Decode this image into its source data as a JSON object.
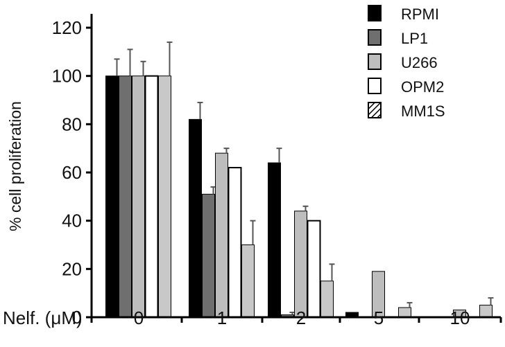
{
  "chart_data": {
    "type": "bar",
    "title": "",
    "xlabel": "Nelf. (μM)",
    "ylabel": "% cell proliferation",
    "ylim": [
      0,
      120
    ],
    "yticks": [
      0,
      20,
      40,
      60,
      80,
      100,
      120
    ],
    "categories": [
      "0",
      "1",
      "2",
      "5",
      "10"
    ],
    "legend_position": "top-right",
    "grid": false,
    "series": [
      {
        "name": "RPMI",
        "color": "#000000",
        "pattern": "solid",
        "values": [
          100,
          82,
          64,
          2,
          0
        ],
        "errors": [
          7,
          7,
          6,
          0,
          0
        ]
      },
      {
        "name": "LP1",
        "color": "#6f6f6f",
        "pattern": "solid",
        "values": [
          100,
          51,
          1,
          0,
          0
        ],
        "errors": [
          11,
          3,
          1,
          0,
          0
        ]
      },
      {
        "name": "U266",
        "color": "#bdbdbd",
        "pattern": "solid",
        "values": [
          100,
          68,
          44,
          19,
          3
        ],
        "errors": [
          6,
          2,
          2,
          0,
          0
        ]
      },
      {
        "name": "OPM2",
        "color": "#ffffff",
        "pattern": "solid",
        "values": [
          100,
          62,
          40,
          0,
          0
        ],
        "errors": [
          0,
          0,
          0,
          0,
          0
        ]
      },
      {
        "name": "MM1S",
        "color": "#c8c8c8",
        "pattern": "diagonal",
        "values": [
          100,
          30,
          15,
          4,
          5
        ],
        "errors": [
          14,
          10,
          7,
          2,
          3
        ]
      }
    ]
  }
}
